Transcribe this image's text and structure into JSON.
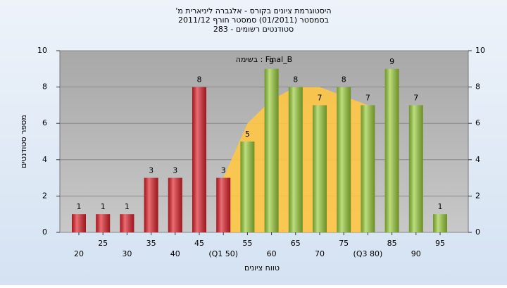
{
  "chart_data": {
    "type": "bar",
    "title": "היסטוגרמת ציונים בקורס - אלגברה ליניארית מ'",
    "subtitle": [
      "בסמסטר (01/2011) סמסטר חורף 2011/12",
      "סטודנטים רשומים - 283"
    ],
    "annotation": "בשימה : Final_B",
    "y_label": "מספר סטודנטים",
    "x_label": "טווח ציונים",
    "categories": [
      "20",
      "25",
      "30",
      "35",
      "40",
      "45",
      "(Q1 50)",
      "55",
      "60",
      "65",
      "70",
      "75",
      "(Q3 80)",
      "85",
      "90",
      "95"
    ],
    "values": [
      1,
      1,
      1,
      3,
      3,
      8,
      3,
      5,
      9,
      8,
      7,
      8,
      7,
      9,
      7,
      1
    ],
    "colors": [
      "#e0202a",
      "#e0202a",
      "#e0202a",
      "#e0202a",
      "#e0202a",
      "#e0202a",
      "#e0202a",
      "#9acd3a",
      "#9acd3a",
      "#9acd3a",
      "#9acd3a",
      "#9acd3a",
      "#9acd3a",
      "#9acd3a",
      "#9acd3a",
      "#9acd3a"
    ],
    "area": {
      "color": "#ffc845",
      "values": [
        null,
        null,
        null,
        null,
        null,
        null,
        3,
        6,
        7.3,
        8,
        8,
        7.5,
        7,
        null,
        null,
        null
      ]
    },
    "ylim": [
      0,
      10
    ],
    "yticks": [
      0,
      2,
      4,
      6,
      8,
      10
    ],
    "y2lim": [
      0,
      10
    ],
    "y2ticks": [
      0,
      2,
      4,
      6,
      8,
      10
    ],
    "grid": true
  }
}
